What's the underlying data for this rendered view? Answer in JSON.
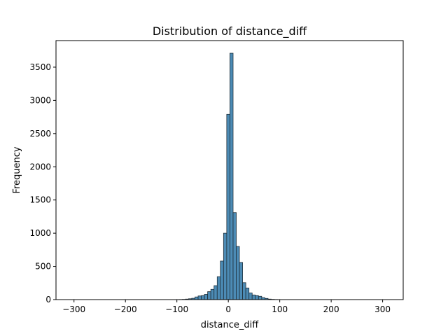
{
  "chart_data": {
    "type": "bar",
    "title": "Distribution of distance_diff",
    "xlabel": "distance_diff",
    "ylabel": "Frequency",
    "xlim": [
      -335,
      340
    ],
    "ylim": [
      0,
      3900
    ],
    "xticks": [
      -300,
      -200,
      -100,
      0,
      100,
      200,
      300
    ],
    "xtick_labels": [
      "−300",
      "−200",
      "−100",
      "0",
      "100",
      "200",
      "300"
    ],
    "yticks": [
      0,
      500,
      1000,
      1500,
      2000,
      2500,
      3000,
      3500
    ],
    "ytick_labels": [
      "0",
      "500",
      "1000",
      "1500",
      "2000",
      "2500",
      "3000",
      "3500"
    ],
    "bin_width": 6.18,
    "bins": [
      {
        "x": -92.7,
        "count": 2
      },
      {
        "x": -86.5,
        "count": 4
      },
      {
        "x": -80.3,
        "count": 8
      },
      {
        "x": -74.2,
        "count": 13
      },
      {
        "x": -68.0,
        "count": 20
      },
      {
        "x": -61.8,
        "count": 40
      },
      {
        "x": -55.6,
        "count": 55
      },
      {
        "x": -49.4,
        "count": 60
      },
      {
        "x": -43.3,
        "count": 80
      },
      {
        "x": -37.1,
        "count": 120
      },
      {
        "x": -30.9,
        "count": 155
      },
      {
        "x": -24.7,
        "count": 210
      },
      {
        "x": -18.5,
        "count": 345
      },
      {
        "x": -12.4,
        "count": 580
      },
      {
        "x": -6.2,
        "count": 1000
      },
      {
        "x": 0.0,
        "count": 2790
      },
      {
        "x": 6.2,
        "count": 3710
      },
      {
        "x": 12.4,
        "count": 1310
      },
      {
        "x": 18.5,
        "count": 800
      },
      {
        "x": 24.7,
        "count": 560
      },
      {
        "x": 30.9,
        "count": 255
      },
      {
        "x": 37.1,
        "count": 175
      },
      {
        "x": 43.3,
        "count": 100
      },
      {
        "x": 49.4,
        "count": 70
      },
      {
        "x": 55.6,
        "count": 60
      },
      {
        "x": 61.8,
        "count": 50
      },
      {
        "x": 68.0,
        "count": 30
      },
      {
        "x": 74.2,
        "count": 18
      },
      {
        "x": 80.3,
        "count": 8
      },
      {
        "x": 86.5,
        "count": 4
      },
      {
        "x": 92.7,
        "count": 2
      }
    ],
    "grid": false,
    "colors": {
      "bar_fill": "#4c8bb5",
      "bar_edge": "#1f2f3a",
      "axes": "#000000",
      "background": "#ffffff"
    }
  }
}
